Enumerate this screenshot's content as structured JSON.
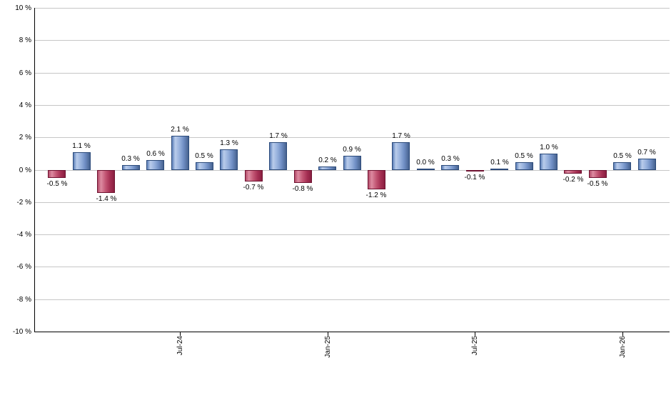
{
  "chart_data": {
    "type": "bar",
    "title": "",
    "xlabel": "",
    "ylabel": "",
    "ylim": [
      -10,
      10
    ],
    "ytick_step": 2,
    "grid": true,
    "legend": false,
    "value_suffix": " %",
    "yticks": [
      {
        "value": 10,
        "label": "10 %"
      },
      {
        "value": 8,
        "label": "8 %"
      },
      {
        "value": 6,
        "label": "6 %"
      },
      {
        "value": 4,
        "label": "4 %"
      },
      {
        "value": 2,
        "label": "2 %"
      },
      {
        "value": 0,
        "label": "0 %"
      },
      {
        "value": -2,
        "label": "-2 %"
      },
      {
        "value": -4,
        "label": "-4 %"
      },
      {
        "value": -6,
        "label": "-6 %"
      },
      {
        "value": -8,
        "label": "-8 %"
      },
      {
        "value": -10,
        "label": "-10 %"
      }
    ],
    "bars": [
      {
        "value": -0.5,
        "label": "-0.5 %"
      },
      {
        "value": 1.1,
        "label": "1.1 %"
      },
      {
        "value": -1.4,
        "label": "-1.4 %"
      },
      {
        "value": 0.3,
        "label": "0.3 %"
      },
      {
        "value": 0.6,
        "label": "0.6 %"
      },
      {
        "value": 2.1,
        "label": "2.1 %"
      },
      {
        "value": 0.5,
        "label": "0.5 %"
      },
      {
        "value": 1.3,
        "label": "1.3 %"
      },
      {
        "value": -0.7,
        "label": "-0.7 %"
      },
      {
        "value": 1.7,
        "label": "1.7 %"
      },
      {
        "value": -0.8,
        "label": "-0.8 %"
      },
      {
        "value": 0.2,
        "label": "0.2 %"
      },
      {
        "value": 0.9,
        "label": "0.9 %"
      },
      {
        "value": -1.2,
        "label": "-1.2 %"
      },
      {
        "value": 1.7,
        "label": "1.7 %"
      },
      {
        "value": 0.0,
        "label": "0.0 %"
      },
      {
        "value": 0.3,
        "label": "0.3 %"
      },
      {
        "value": -0.1,
        "label": "-0.1 %"
      },
      {
        "value": 0.1,
        "label": "0.1 %"
      },
      {
        "value": 0.5,
        "label": "0.5 %"
      },
      {
        "value": 1.0,
        "label": "1.0 %"
      },
      {
        "value": -0.2,
        "label": "-0.2 %"
      },
      {
        "value": -0.5,
        "label": "-0.5 %"
      },
      {
        "value": 0.5,
        "label": "0.5 %"
      },
      {
        "value": 0.7,
        "label": "0.7 %"
      }
    ],
    "xticks": [
      {
        "label": "Jul-24",
        "bar_index": 5
      },
      {
        "label": "Jan-25",
        "bar_index": 11
      },
      {
        "label": "Jul-25",
        "bar_index": 17
      },
      {
        "label": "Jan-26",
        "bar_index": 23
      }
    ],
    "colors": {
      "positive_bar": "#7b9bd2",
      "positive_bar_border": "#2b4a7a",
      "negative_bar": "#c25573",
      "negative_bar_border": "#6e1230",
      "gridline": "#c6c6c6",
      "axis": "#000000",
      "text": "#000000",
      "background": "#ffffff"
    }
  }
}
